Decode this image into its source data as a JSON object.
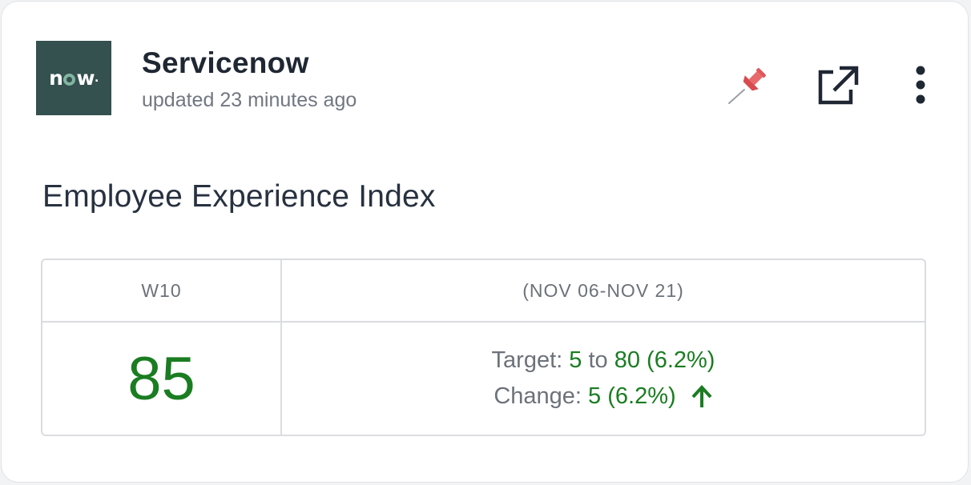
{
  "header": {
    "logo_text_n": "n",
    "logo_text_w": "w",
    "logo_text_dot": ".",
    "app_name": "Servicenow",
    "updated": "updated 23 minutes ago"
  },
  "icons": {
    "pin": "pin-icon",
    "external_link": "external-link-icon",
    "more": "more-vertical-icon",
    "trend": "arrow-up-icon"
  },
  "widget": {
    "title": "Employee Experience Index",
    "period_label": "W10",
    "range_label": "(NOV 06-NOV 21)",
    "score": "85",
    "target": {
      "label": "Target: ",
      "from": "5",
      "mid": " to ",
      "to": "80 (6.2%)"
    },
    "change": {
      "label": "Change: ",
      "value": "5 (6.2%)",
      "direction": "up"
    }
  },
  "colors": {
    "brand_bg": "#34504f",
    "brand_accent": "#81b5a1",
    "positive": "#1a7d21",
    "muted_text": "#6c727a",
    "pin": "#e0575b"
  }
}
